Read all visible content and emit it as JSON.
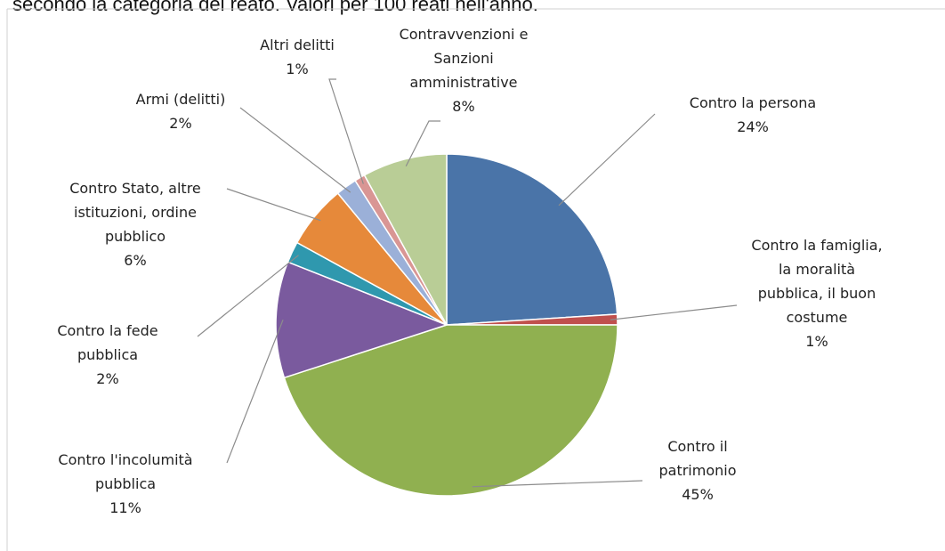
{
  "header": {
    "cut_title": "secondo la categoria del reato. Valori per 100 reati nell'anno."
  },
  "chart_data": {
    "type": "pie",
    "title": "",
    "start_angle_deg": 0,
    "direction": "clockwise",
    "slices": [
      {
        "label": [
          "Contro la persona"
        ],
        "value_text": "24%",
        "value": 24,
        "color": "#4a74a8"
      },
      {
        "label": [
          "Contro la famiglia,",
          "la moralità",
          "pubblica, il buon",
          "costume"
        ],
        "value_text": "1%",
        "value": 1,
        "color": "#c0504d"
      },
      {
        "label": [
          "Contro il",
          "patrimonio"
        ],
        "value_text": "45%",
        "value": 45,
        "color": "#90b050"
      },
      {
        "label": [
          "Contro l'incolumità",
          "pubblica"
        ],
        "value_text": "11%",
        "value": 11,
        "color": "#7a5a9e"
      },
      {
        "label": [
          "Contro la fede",
          "pubblica"
        ],
        "value_text": "2%",
        "value": 2,
        "color": "#2f98ae"
      },
      {
        "label": [
          "Contro Stato, altre",
          "istituzioni, ordine",
          "pubblico"
        ],
        "value_text": "6%",
        "value": 6,
        "color": "#e6893a"
      },
      {
        "label": [
          "Armi (delitti)"
        ],
        "value_text": "2%",
        "value": 2,
        "color": "#9bb0d8"
      },
      {
        "label": [
          "Altri delitti"
        ],
        "value_text": "1%",
        "value": 1,
        "color": "#d99694"
      },
      {
        "label": [
          "Contravvenzioni e",
          "Sanzioni",
          "amministrative"
        ],
        "value_text": "8%",
        "value": 8,
        "color": "#b9cd96"
      }
    ]
  }
}
